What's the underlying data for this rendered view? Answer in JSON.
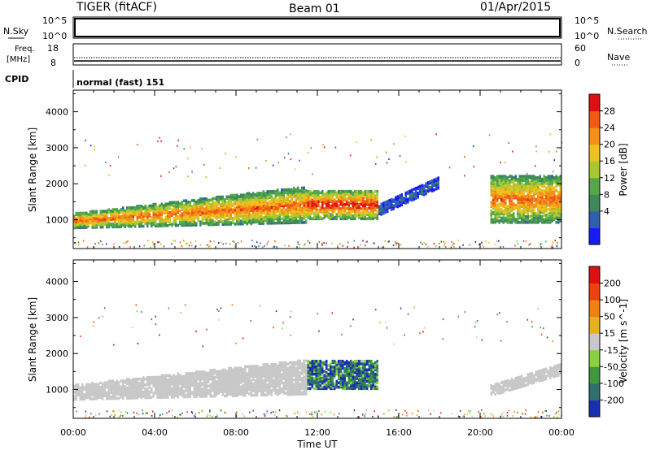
{
  "header": {
    "title": "TIGER (fitACF)",
    "beam": "Beam 01",
    "date": "01/Apr/2015"
  },
  "top_panels": {
    "nsky_label": "N.Sky",
    "nsearch_label": "N.Search",
    "nsky_ticks": [
      "10^5",
      "10^0"
    ],
    "freq_label_1": "Freq.",
    "freq_label_2": "[MHz]",
    "freq_ticks": [
      "18",
      "8"
    ],
    "nave_label": "Nave",
    "nave_ticks": [
      "60",
      "0"
    ],
    "cpid_label": "CPID",
    "cpid_value": "normal (fast) 151"
  },
  "chart_data": [
    {
      "type": "heatmap",
      "panel": "power",
      "ylabel": "Slant Range [km]",
      "xlabel": "Time UT",
      "xlim_hours": [
        0,
        24
      ],
      "ylim_km": [
        200,
        4600
      ],
      "x_ticks": [
        "00:00",
        "04:00",
        "08:00",
        "12:00",
        "16:00",
        "20:00",
        "00:00"
      ],
      "y_ticks": [
        "1000",
        "2000",
        "3000",
        "4000"
      ],
      "colorbar": {
        "label": "Power [dB]",
        "ticks": [
          "28",
          "24",
          "20",
          "16",
          "12",
          "8",
          "4"
        ],
        "colors": [
          "#1a1aff",
          "#2f5fb0",
          "#3c8a5c",
          "#55a84a",
          "#a8c830",
          "#f0c020",
          "#f39018",
          "#f05a12",
          "#e01010"
        ]
      },
      "grid": false,
      "features": [
        {
          "name": "main echo band",
          "start_time": "00:00",
          "end_time": "11:30",
          "range_km": [
            750,
            1900
          ],
          "peak_power_dB": 24
        },
        {
          "name": "midday strong echo",
          "start_time": "11:30",
          "end_time": "15:00",
          "range_km": [
            1000,
            1800
          ],
          "peak_power_dB": 28
        },
        {
          "name": "ascending weak trail",
          "start_time": "15:00",
          "end_time": "18:00",
          "range_km": [
            1100,
            2400
          ],
          "peak_power_dB": 6
        },
        {
          "name": "evening band",
          "start_time": "20:30",
          "end_time": "24:00",
          "range_km": [
            900,
            2200
          ],
          "peak_power_dB": 24
        }
      ]
    },
    {
      "type": "heatmap",
      "panel": "velocity",
      "ylabel": "Slant Range [km]",
      "xlabel": "Time UT",
      "xlim_hours": [
        0,
        24
      ],
      "ylim_km": [
        200,
        4600
      ],
      "x_ticks": [
        "00:00",
        "04:00",
        "08:00",
        "12:00",
        "16:00",
        "20:00",
        "00:00"
      ],
      "y_ticks": [
        "1000",
        "2000",
        "3000",
        "4000"
      ],
      "colorbar": {
        "label": "Velocity [m s^-1]",
        "ticks": [
          "200",
          "100",
          "50",
          "15",
          "-15",
          "-50",
          "-100",
          "-200"
        ],
        "colors": [
          "#1a2fb0",
          "#2f6f6f",
          "#3c9a3c",
          "#8ad040",
          "#c8c8c8",
          "#e8b020",
          "#f08010",
          "#f04010",
          "#e01010"
        ]
      },
      "grid": false,
      "features": [
        {
          "name": "ground scatter band",
          "start_time": "00:00",
          "end_time": "11:30",
          "range_km": [
            700,
            1800
          ],
          "velocity_ms": 0
        },
        {
          "name": "midday mixed echo",
          "start_time": "11:30",
          "end_time": "15:00",
          "range_km": [
            1000,
            1800
          ],
          "velocity_ms": -150
        },
        {
          "name": "evening ground scatter",
          "start_time": "20:30",
          "end_time": "24:00",
          "range_km": [
            800,
            1800
          ],
          "velocity_ms": 0
        }
      ]
    }
  ]
}
